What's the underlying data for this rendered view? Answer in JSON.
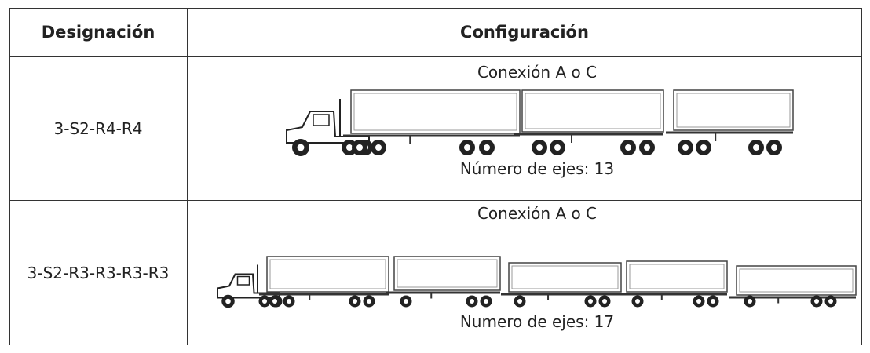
{
  "header": {
    "designation": "Designación",
    "configuration": "Configuración"
  },
  "rows": [
    {
      "designation": "3-S2-R4-R4",
      "connection": "Conexión A o C",
      "axles": "Número de ejes: 13"
    },
    {
      "designation": "3-S2-R3-R3-R3-R3",
      "connection": "Conexión A o C",
      "axles": "Numero de ejes: 17"
    }
  ]
}
